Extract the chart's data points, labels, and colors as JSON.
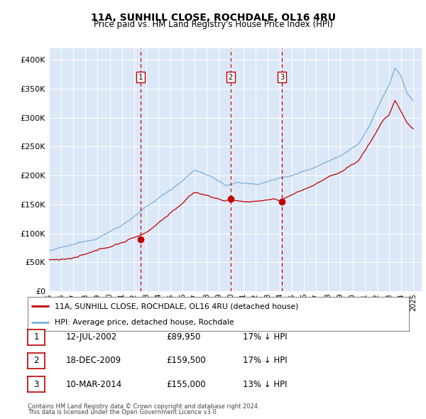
{
  "title": "11A, SUNHILL CLOSE, ROCHDALE, OL16 4RU",
  "subtitle": "Price paid vs. HM Land Registry's House Price Index (HPI)",
  "plot_bg": "#dce8f7",
  "ylim": [
    0,
    420000
  ],
  "yticks": [
    0,
    50000,
    100000,
    150000,
    200000,
    250000,
    300000,
    350000,
    400000
  ],
  "ytick_labels": [
    "£0",
    "£50K",
    "£100K",
    "£150K",
    "£200K",
    "£250K",
    "£300K",
    "£350K",
    "£400K"
  ],
  "hpi_color": "#7ab0e0",
  "price_color": "#c00000",
  "transaction_dates": [
    2002.54,
    2009.96,
    2014.19
  ],
  "transaction_prices": [
    89950,
    159500,
    155000
  ],
  "transaction_labels": [
    "1",
    "2",
    "3"
  ],
  "footnote1": "Contains HM Land Registry data © Crown copyright and database right 2024.",
  "footnote2": "This data is licensed under the Open Government Licence v3.0.",
  "legend_price_label": "11A, SUNHILL CLOSE, ROCHDALE, OL16 4RU (detached house)",
  "legend_hpi_label": "HPI: Average price, detached house, Rochdale",
  "table_rows": [
    {
      "num": "1",
      "date": "12-JUL-2002",
      "price": "£89,950",
      "hpi": "17% ↓ HPI"
    },
    {
      "num": "2",
      "date": "18-DEC-2009",
      "price": "£159,500",
      "hpi": "17% ↓ HPI"
    },
    {
      "num": "3",
      "date": "10-MAR-2014",
      "price": "£155,000",
      "hpi": "13% ↓ HPI"
    }
  ]
}
